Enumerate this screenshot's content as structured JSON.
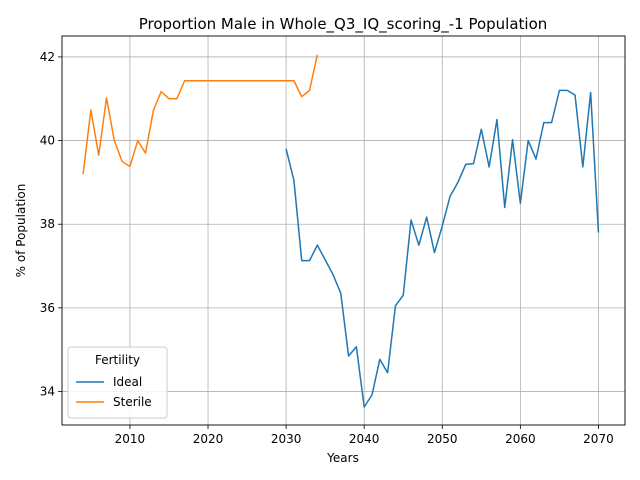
{
  "chart_data": {
    "type": "line",
    "title": "Proportion Male in Whole_Q3_IQ_scoring_-1 Population",
    "xlabel": "Years",
    "ylabel": "% of Population",
    "xlim": [
      2001.3,
      2073.4
    ],
    "ylim": [
      33.2,
      42.5
    ],
    "xticks": [
      2010,
      2020,
      2030,
      2040,
      2050,
      2060,
      2070
    ],
    "yticks": [
      34,
      36,
      38,
      40,
      42
    ],
    "xtick_labels": [
      "2010",
      "2020",
      "2030",
      "2040",
      "2050",
      "2060",
      "2070"
    ],
    "ytick_labels": [
      "34",
      "36",
      "38",
      "40",
      "42"
    ],
    "grid": true,
    "legend": {
      "title": "Fertility",
      "placement": "lower-left"
    },
    "series": [
      {
        "name": "Ideal",
        "color": "#1f77b4",
        "x": [
          2030,
          2031,
          2032,
          2033,
          2034,
          2035,
          2036,
          2037,
          2038,
          2039,
          2040,
          2041,
          2042,
          2043,
          2044,
          2045,
          2046,
          2047,
          2048,
          2049,
          2050,
          2051,
          2052,
          2053,
          2054,
          2055,
          2056,
          2057,
          2058,
          2059,
          2060,
          2061,
          2062,
          2063,
          2064,
          2065,
          2066,
          2067,
          2068,
          2069,
          2070
        ],
        "y": [
          39.8,
          39.05,
          37.13,
          37.13,
          37.5,
          37.15,
          36.8,
          36.35,
          34.85,
          35.07,
          33.63,
          33.92,
          34.77,
          34.45,
          36.05,
          36.3,
          38.1,
          37.5,
          38.17,
          37.32,
          37.96,
          38.67,
          39.0,
          39.43,
          39.45,
          40.27,
          39.37,
          40.5,
          38.4,
          40.02,
          38.5,
          40.0,
          39.56,
          40.43,
          40.43,
          41.2,
          41.2,
          41.09,
          39.37,
          41.15,
          37.8
        ]
      },
      {
        "name": "Sterile",
        "color": "#ff7f0e",
        "x": [
          2004,
          2005,
          2006,
          2007,
          2008,
          2009,
          2010,
          2011,
          2012,
          2013,
          2014,
          2015,
          2016,
          2017,
          2018,
          2019,
          2020,
          2021,
          2022,
          2023,
          2024,
          2025,
          2026,
          2027,
          2028,
          2029,
          2030,
          2031,
          2032,
          2033,
          2034
        ],
        "y": [
          39.2,
          40.73,
          39.65,
          41.02,
          40.0,
          39.5,
          39.38,
          40.0,
          39.7,
          40.72,
          41.17,
          41.0,
          41.0,
          41.43,
          41.43,
          41.43,
          41.43,
          41.43,
          41.43,
          41.43,
          41.43,
          41.43,
          41.43,
          41.43,
          41.43,
          41.43,
          41.43,
          41.43,
          41.05,
          41.2,
          42.05
        ]
      }
    ]
  }
}
